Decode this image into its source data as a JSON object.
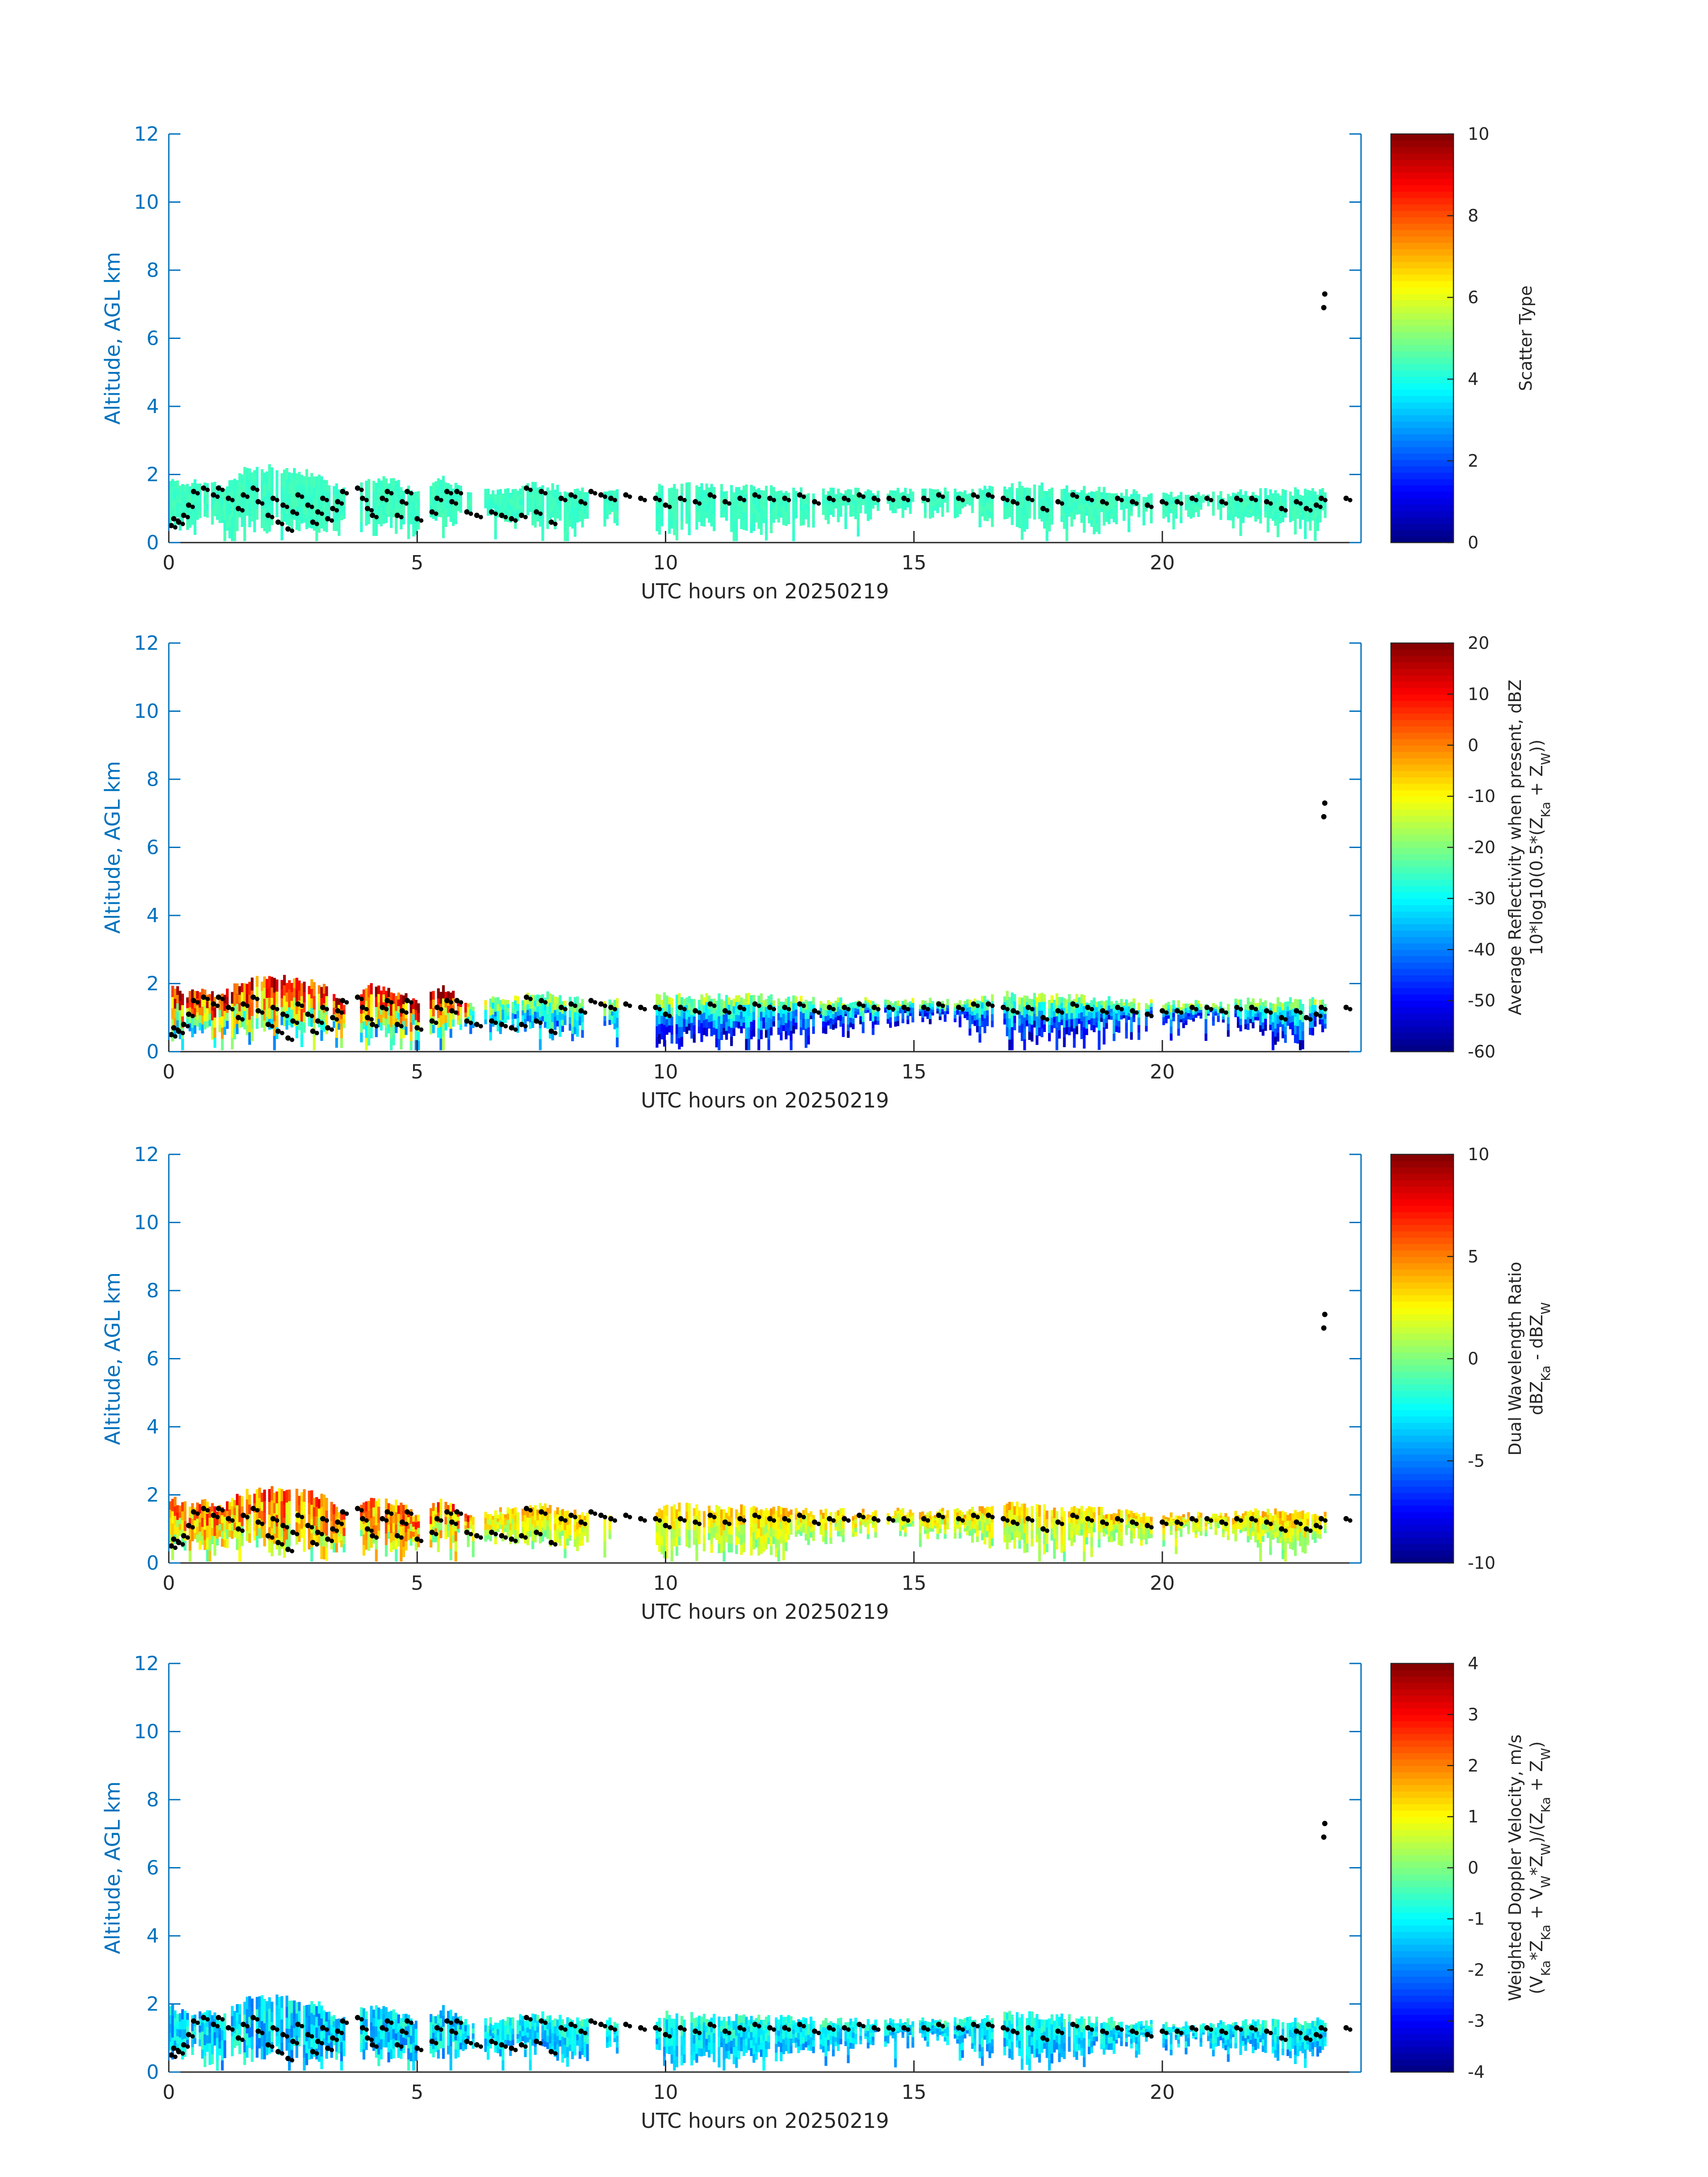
{
  "chart_data": [
    {
      "type": "heatmap",
      "xlabel": "UTC hours on 20250219",
      "ylabel": "Altitude, AGL km",
      "xlim": [
        0,
        24
      ],
      "ylim": [
        0,
        12
      ],
      "xticks": [
        "0",
        "5",
        "10",
        "15",
        "20"
      ],
      "yticks": [
        "0",
        "2",
        "4",
        "6",
        "8",
        "10",
        "12"
      ],
      "colorbar": {
        "label_lines": [
          "Scatter Type"
        ],
        "min": 0,
        "max": 10,
        "ticks": [
          "0",
          "2",
          "4",
          "6",
          "8",
          "10"
        ]
      },
      "color_mode": "scatter"
    },
    {
      "type": "heatmap",
      "xlabel": "UTC hours on 20250219",
      "ylabel": "Altitude, AGL km",
      "xlim": [
        0,
        24
      ],
      "ylim": [
        0,
        12
      ],
      "xticks": [
        "0",
        "5",
        "10",
        "15",
        "20"
      ],
      "yticks": [
        "0",
        "2",
        "4",
        "6",
        "8",
        "10",
        "12"
      ],
      "colorbar": {
        "label_lines": [
          "Average Reflectivity when present, dBZ",
          "10*log10(0.5*(Z_Ka + Z_W))"
        ],
        "min": -60,
        "max": 20,
        "ticks": [
          "-60",
          "-50",
          "-40",
          "-30",
          "-20",
          "-10",
          "0",
          "10",
          "20"
        ]
      },
      "color_mode": "reflectivity"
    },
    {
      "type": "heatmap",
      "xlabel": "UTC hours on 20250219",
      "ylabel": "Altitude, AGL km",
      "xlim": [
        0,
        24
      ],
      "ylim": [
        0,
        12
      ],
      "xticks": [
        "0",
        "5",
        "10",
        "15",
        "20"
      ],
      "yticks": [
        "0",
        "2",
        "4",
        "6",
        "8",
        "10",
        "12"
      ],
      "colorbar": {
        "label_lines": [
          "Dual Wavelength Ratio",
          "dBZ_Ka - dBZ_W"
        ],
        "min": -10,
        "max": 10,
        "ticks": [
          "-10",
          "-5",
          "0",
          "5",
          "10"
        ]
      },
      "color_mode": "dwr"
    },
    {
      "type": "heatmap",
      "xlabel": "UTC hours on 20250219",
      "ylabel": "Altitude, AGL km",
      "xlim": [
        0,
        24
      ],
      "ylim": [
        0,
        12
      ],
      "xticks": [
        "0",
        "5",
        "10",
        "15",
        "20"
      ],
      "yticks": [
        "0",
        "2",
        "4",
        "6",
        "8",
        "10",
        "12"
      ],
      "colorbar": {
        "label_lines": [
          "Weighted Doppler Velocity, m/s",
          "(V_Ka*Z_Ka + V_W*Z_W)/(Z_Ka + Z_W)"
        ],
        "min": -4,
        "max": 4,
        "ticks": [
          "-4",
          "-3",
          "-2",
          "-1",
          "0",
          "1",
          "2",
          "3",
          "4"
        ]
      },
      "color_mode": "velocity"
    }
  ],
  "cloud_top_km": [
    [
      0.0,
      1.9
    ],
    [
      0.3,
      1.7
    ],
    [
      0.7,
      1.8
    ],
    [
      1.0,
      1.6
    ],
    [
      1.5,
      2.1
    ],
    [
      2.0,
      2.2
    ],
    [
      2.5,
      2.1
    ],
    [
      3.0,
      2.0
    ],
    [
      3.5,
      1.5
    ],
    [
      4.0,
      1.9
    ],
    [
      4.5,
      1.8
    ],
    [
      5.0,
      1.4
    ],
    [
      5.5,
      1.9
    ],
    [
      6.0,
      1.4
    ],
    [
      7.0,
      1.6
    ],
    [
      7.5,
      1.7
    ],
    [
      8.0,
      1.5
    ],
    [
      9.0,
      1.5
    ],
    [
      9.5,
      1.4
    ],
    [
      10.0,
      1.7
    ],
    [
      11.0,
      1.6
    ],
    [
      12.0,
      1.6
    ],
    [
      13.0,
      1.5
    ],
    [
      14.0,
      1.5
    ],
    [
      15.0,
      1.5
    ],
    [
      16.0,
      1.5
    ],
    [
      16.5,
      1.6
    ],
    [
      17.0,
      1.7
    ],
    [
      18.0,
      1.6
    ],
    [
      19.0,
      1.5
    ],
    [
      20.0,
      1.4
    ],
    [
      21.0,
      1.4
    ],
    [
      22.0,
      1.5
    ],
    [
      23.0,
      1.5
    ],
    [
      23.3,
      1.5
    ]
  ],
  "cloud_base_km": [
    [
      0.0,
      0.4
    ],
    [
      0.8,
      0.3
    ],
    [
      1.5,
      0.3
    ],
    [
      3.5,
      0.3
    ],
    [
      4.5,
      0.3
    ],
    [
      5.5,
      0.3
    ],
    [
      6.0,
      0.6
    ],
    [
      7.0,
      0.5
    ],
    [
      8.0,
      0.3
    ],
    [
      9.5,
      0.5
    ],
    [
      10.0,
      0.1
    ],
    [
      11.0,
      0.3
    ],
    [
      12.0,
      0.2
    ],
    [
      13.0,
      0.5
    ],
    [
      14.0,
      0.7
    ],
    [
      15.0,
      0.7
    ],
    [
      16.0,
      0.7
    ],
    [
      16.5,
      0.4
    ],
    [
      17.5,
      0.2
    ],
    [
      18.5,
      0.4
    ],
    [
      19.5,
      0.6
    ],
    [
      20.0,
      0.7
    ],
    [
      21.0,
      0.7
    ],
    [
      22.0,
      0.4
    ],
    [
      22.8,
      0.2
    ],
    [
      23.3,
      0.6
    ]
  ],
  "data_gaps_hours": [
    [
      3.5,
      3.8
    ],
    [
      5.0,
      5.2
    ],
    [
      6.1,
      6.3
    ],
    [
      8.4,
      8.7
    ],
    [
      9.0,
      9.8
    ],
    [
      13.0,
      13.1
    ],
    [
      14.3,
      14.4
    ],
    [
      15.0,
      15.1
    ],
    [
      15.7,
      15.8
    ],
    [
      16.6,
      16.8
    ],
    [
      19.8,
      20.0
    ],
    [
      23.3,
      24.0
    ]
  ],
  "black_points_km": [
    [
      0.05,
      0.5
    ],
    [
      0.1,
      0.7
    ],
    [
      0.2,
      0.6
    ],
    [
      0.3,
      0.8
    ],
    [
      0.4,
      1.1
    ],
    [
      0.5,
      1.5
    ],
    [
      0.7,
      1.6
    ],
    [
      0.9,
      1.4
    ],
    [
      1.0,
      1.6
    ],
    [
      1.2,
      1.3
    ],
    [
      1.4,
      1.0
    ],
    [
      1.5,
      1.4
    ],
    [
      1.7,
      1.6
    ],
    [
      1.8,
      1.2
    ],
    [
      2.0,
      0.8
    ],
    [
      2.1,
      1.3
    ],
    [
      2.2,
      0.6
    ],
    [
      2.3,
      1.1
    ],
    [
      2.4,
      0.4
    ],
    [
      2.5,
      0.9
    ],
    [
      2.6,
      1.4
    ],
    [
      2.8,
      1.1
    ],
    [
      2.9,
      0.6
    ],
    [
      3.0,
      0.9
    ],
    [
      3.1,
      1.3
    ],
    [
      3.2,
      0.7
    ],
    [
      3.3,
      1.0
    ],
    [
      3.4,
      1.2
    ],
    [
      3.5,
      1.5
    ],
    [
      3.8,
      1.6
    ],
    [
      3.9,
      1.3
    ],
    [
      4.0,
      1.0
    ],
    [
      4.1,
      0.8
    ],
    [
      4.3,
      1.3
    ],
    [
      4.4,
      1.5
    ],
    [
      4.6,
      0.8
    ],
    [
      4.7,
      1.2
    ],
    [
      4.8,
      1.5
    ],
    [
      5.0,
      0.7
    ],
    [
      5.3,
      0.9
    ],
    [
      5.4,
      1.3
    ],
    [
      5.6,
      1.5
    ],
    [
      5.7,
      1.2
    ],
    [
      5.8,
      1.5
    ],
    [
      6.0,
      0.9
    ],
    [
      6.2,
      0.8
    ],
    [
      6.5,
      0.9
    ],
    [
      6.7,
      0.8
    ],
    [
      6.9,
      0.7
    ],
    [
      7.1,
      0.8
    ],
    [
      7.2,
      1.6
    ],
    [
      7.4,
      0.9
    ],
    [
      7.5,
      1.5
    ],
    [
      7.7,
      0.6
    ],
    [
      7.9,
      1.3
    ],
    [
      8.1,
      1.4
    ],
    [
      8.3,
      1.2
    ],
    [
      8.5,
      1.5
    ],
    [
      8.7,
      1.4
    ],
    [
      8.9,
      1.3
    ],
    [
      9.2,
      1.4
    ],
    [
      9.5,
      1.3
    ],
    [
      9.8,
      1.3
    ],
    [
      10.0,
      1.1
    ],
    [
      10.3,
      1.3
    ],
    [
      10.6,
      1.2
    ],
    [
      10.9,
      1.4
    ],
    [
      11.2,
      1.2
    ],
    [
      11.5,
      1.3
    ],
    [
      11.8,
      1.4
    ],
    [
      12.1,
      1.3
    ],
    [
      12.4,
      1.3
    ],
    [
      12.7,
      1.4
    ],
    [
      13.0,
      1.2
    ],
    [
      13.3,
      1.3
    ],
    [
      13.6,
      1.3
    ],
    [
      13.9,
      1.4
    ],
    [
      14.2,
      1.3
    ],
    [
      14.5,
      1.3
    ],
    [
      14.8,
      1.3
    ],
    [
      15.2,
      1.3
    ],
    [
      15.5,
      1.4
    ],
    [
      15.9,
      1.3
    ],
    [
      16.2,
      1.4
    ],
    [
      16.5,
      1.4
    ],
    [
      16.8,
      1.3
    ],
    [
      17.0,
      1.2
    ],
    [
      17.3,
      1.3
    ],
    [
      17.6,
      1.0
    ],
    [
      17.9,
      1.2
    ],
    [
      18.2,
      1.4
    ],
    [
      18.5,
      1.3
    ],
    [
      18.8,
      1.2
    ],
    [
      19.1,
      1.3
    ],
    [
      19.4,
      1.2
    ],
    [
      19.7,
      1.1
    ],
    [
      20.0,
      1.2
    ],
    [
      20.3,
      1.2
    ],
    [
      20.6,
      1.3
    ],
    [
      20.9,
      1.3
    ],
    [
      21.2,
      1.2
    ],
    [
      21.5,
      1.3
    ],
    [
      21.8,
      1.3
    ],
    [
      22.1,
      1.2
    ],
    [
      22.4,
      1.0
    ],
    [
      22.7,
      1.2
    ],
    [
      22.9,
      1.0
    ],
    [
      23.1,
      1.1
    ],
    [
      23.2,
      1.3
    ],
    [
      23.25,
      6.9
    ],
    [
      23.27,
      7.3
    ],
    [
      23.7,
      1.3
    ]
  ]
}
